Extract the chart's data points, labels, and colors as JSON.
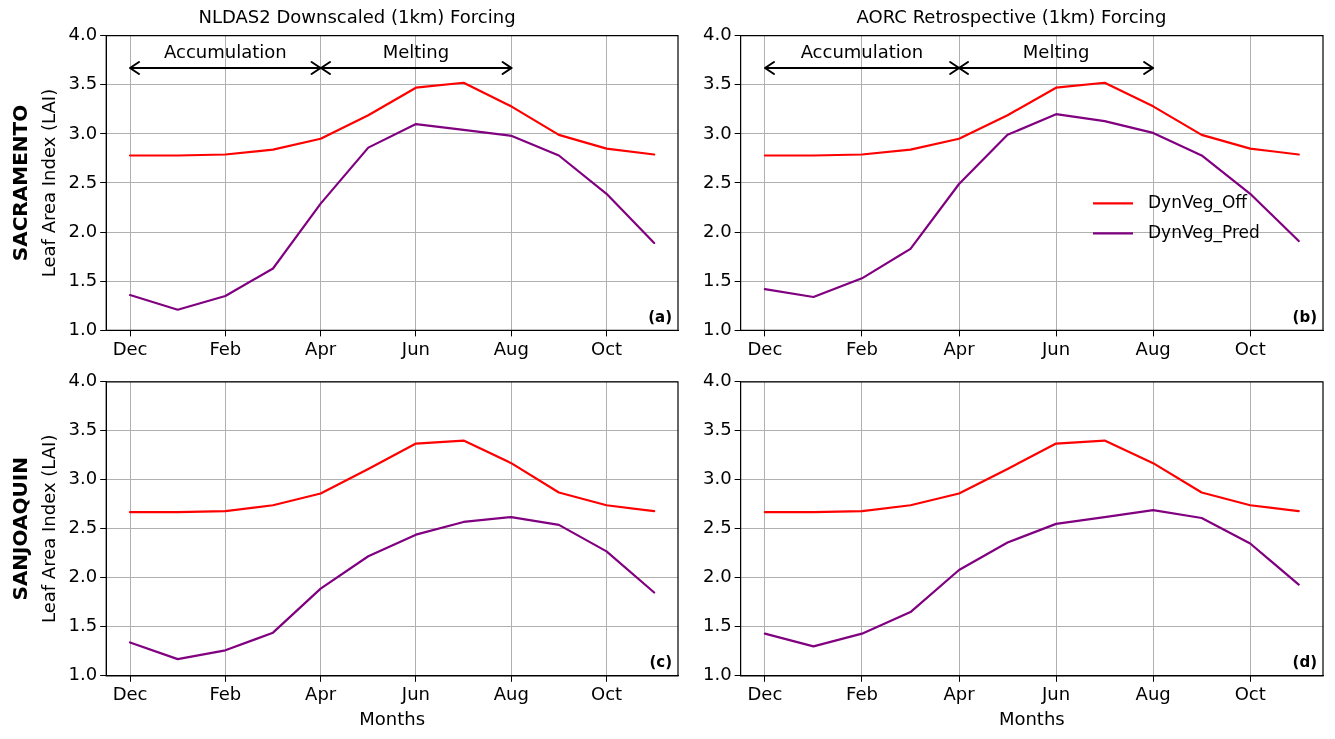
{
  "chart_data": [
    {
      "type": "line",
      "title": "NLDAS2 Downscaled (1km) Forcing",
      "ylabel": "Leaf Area Index (LAI)",
      "annotations": [
        "SACRAMENTO",
        "Accumulation",
        "Melting",
        "(a)"
      ],
      "categories": [
        "Dec",
        null,
        "Feb",
        null,
        "Apr",
        null,
        "Jun",
        null,
        "Aug",
        null,
        "Oct",
        null
      ],
      "ylim": [
        1,
        4
      ],
      "yticks": [
        {
          "value": 1,
          "label": "1.0"
        },
        {
          "value": 1.5,
          "label": "1.5"
        },
        {
          "value": 2,
          "label": "2.0"
        },
        {
          "value": 2.5,
          "label": "2.5"
        },
        {
          "value": 3,
          "label": "3.0"
        },
        {
          "value": 3.5,
          "label": "3.5"
        },
        {
          "value": 4,
          "label": "4.0"
        }
      ],
      "grid": true,
      "line_style": "solid",
      "series": [
        {
          "color": "#ff0000",
          "values": [
            2.78,
            2.78,
            2.79,
            2.84,
            2.95,
            3.19,
            3.47,
            3.52,
            3.28,
            2.99,
            2.85,
            2.79
          ]
        },
        {
          "color": "#800080",
          "values": [
            1.36,
            1.21,
            1.35,
            1.63,
            2.29,
            2.86,
            3.1,
            3.04,
            2.98,
            2.78,
            2.39,
            1.89
          ]
        }
      ]
    },
    {
      "type": "line",
      "title": "AORC Retrospective (1km) Forcing",
      "annotations": [
        "Accumulation",
        "Melting",
        "(b)"
      ],
      "categories": [
        "Dec",
        null,
        "Feb",
        null,
        "Apr",
        null,
        "Jun",
        null,
        "Aug",
        null,
        "Oct",
        null
      ],
      "ylim": [
        1,
        4
      ],
      "yticks": [
        {
          "value": 1,
          "label": "1.0"
        },
        {
          "value": 1.5,
          "label": "1.5"
        },
        {
          "value": 2,
          "label": "2.0"
        },
        {
          "value": 2.5,
          "label": "2.5"
        },
        {
          "value": 3,
          "label": "3.0"
        },
        {
          "value": 3.5,
          "label": "3.5"
        },
        {
          "value": 4,
          "label": "4.0"
        }
      ],
      "grid": true,
      "legend": "center right",
      "line_style": "solid",
      "series": [
        {
          "name": "DynVeg_Off",
          "color": "#ff0000",
          "values": [
            2.78,
            2.78,
            2.79,
            2.84,
            2.95,
            3.19,
            3.47,
            3.52,
            3.28,
            2.99,
            2.85,
            2.79
          ]
        },
        {
          "name": "DynVeg_Pred",
          "color": "#800080",
          "values": [
            1.42,
            1.34,
            1.53,
            1.83,
            2.49,
            2.99,
            3.2,
            3.13,
            3.01,
            2.78,
            2.39,
            1.91
          ]
        }
      ]
    },
    {
      "type": "line",
      "xlabel": "Months",
      "ylabel": "Leaf Area Index (LAI)",
      "annotations": [
        "SANJOAQUIN",
        "(c)"
      ],
      "categories": [
        "Dec",
        null,
        "Feb",
        null,
        "Apr",
        null,
        "Jun",
        null,
        "Aug",
        null,
        "Oct",
        null
      ],
      "ylim": [
        1,
        4
      ],
      "yticks": [
        {
          "value": 1,
          "label": "1.0"
        },
        {
          "value": 1.5,
          "label": "1.5"
        },
        {
          "value": 2,
          "label": "2.0"
        },
        {
          "value": 2.5,
          "label": "2.5"
        },
        {
          "value": 3,
          "label": "3.0"
        },
        {
          "value": 3.5,
          "label": "3.5"
        },
        {
          "value": 4,
          "label": "4.0"
        }
      ],
      "grid": true,
      "line_style": "solid",
      "series": [
        {
          "color": "#ff0000",
          "values": [
            2.67,
            2.67,
            2.68,
            2.74,
            2.86,
            3.11,
            3.37,
            3.4,
            3.17,
            2.87,
            2.74,
            2.68
          ]
        },
        {
          "color": "#800080",
          "values": [
            1.34,
            1.17,
            1.26,
            1.44,
            1.89,
            2.22,
            2.44,
            2.57,
            2.62,
            2.54,
            2.27,
            1.85
          ]
        }
      ]
    },
    {
      "type": "line",
      "xlabel": "Months",
      "annotations": [
        "(d)"
      ],
      "categories": [
        "Dec",
        null,
        "Feb",
        null,
        "Apr",
        null,
        "Jun",
        null,
        "Aug",
        null,
        "Oct",
        null
      ],
      "ylim": [
        1,
        4
      ],
      "yticks": [
        {
          "value": 1,
          "label": "1.0"
        },
        {
          "value": 1.5,
          "label": "1.5"
        },
        {
          "value": 2,
          "label": "2.0"
        },
        {
          "value": 2.5,
          "label": "2.5"
        },
        {
          "value": 3,
          "label": "3.0"
        },
        {
          "value": 3.5,
          "label": "3.5"
        },
        {
          "value": 4,
          "label": "4.0"
        }
      ],
      "grid": true,
      "line_style": "solid",
      "series": [
        {
          "color": "#ff0000",
          "values": [
            2.67,
            2.67,
            2.68,
            2.74,
            2.86,
            3.11,
            3.37,
            3.4,
            3.17,
            2.87,
            2.74,
            2.68
          ]
        },
        {
          "color": "#800080",
          "values": [
            1.43,
            1.3,
            1.43,
            1.65,
            2.08,
            2.36,
            2.55,
            2.62,
            2.69,
            2.61,
            2.35,
            1.93
          ]
        }
      ]
    }
  ]
}
